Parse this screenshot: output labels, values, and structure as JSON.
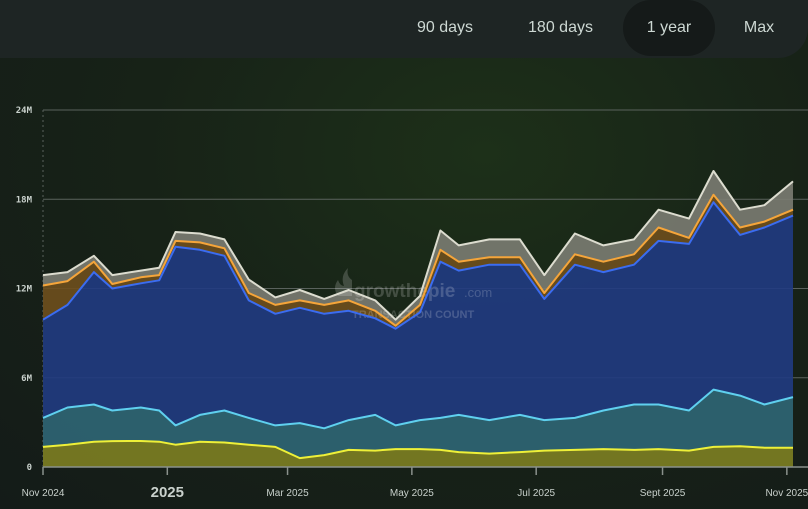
{
  "timeframe_tabs": [
    {
      "label": "90 days"
    },
    {
      "label": "180 days"
    },
    {
      "label": "1 year",
      "active": true
    },
    {
      "label": "Max"
    }
  ],
  "watermark": {
    "brand": "growthepie",
    "domain": ".com",
    "metric": "TRANSACTION COUNT"
  },
  "chart_data": {
    "type": "area",
    "stacked": true,
    "ylim": [
      0,
      24000000
    ],
    "y_ticks": [
      {
        "value": 0,
        "label": "0"
      },
      {
        "value": 6000000,
        "label": "6M"
      },
      {
        "value": 12000000,
        "label": "12M"
      },
      {
        "value": 18000000,
        "label": "18M"
      },
      {
        "value": 24000000,
        "label": "24M"
      }
    ],
    "x_range": [
      "2024-11-01",
      "2025-11-05"
    ],
    "x_ticks": [
      {
        "date": "2024-11-01",
        "label": "Nov 2024"
      },
      {
        "date": "2025-01-01",
        "label": "2025",
        "major": true
      },
      {
        "date": "2025-03-01",
        "label": "Mar 2025"
      },
      {
        "date": "2025-05-01",
        "label": "May 2025"
      },
      {
        "date": "2025-07-01",
        "label": "Jul 2025"
      },
      {
        "date": "2025-09-01",
        "label": "Sept 2025"
      },
      {
        "date": "2025-11-01",
        "label": "Nov 2025"
      }
    ],
    "grid": true,
    "x": [
      "2024-11-01",
      "2024-11-13",
      "2024-11-26",
      "2024-12-05",
      "2024-12-19",
      "2024-12-28",
      "2025-01-05",
      "2025-01-17",
      "2025-01-29",
      "2025-02-10",
      "2025-02-23",
      "2025-03-07",
      "2025-03-19",
      "2025-03-31",
      "2025-04-13",
      "2025-04-23",
      "2025-05-05",
      "2025-05-15",
      "2025-05-24",
      "2025-06-08",
      "2025-06-23",
      "2025-07-05",
      "2025-07-20",
      "2025-08-03",
      "2025-08-18",
      "2025-08-30",
      "2025-09-14",
      "2025-09-26",
      "2025-10-09",
      "2025-10-21",
      "2025-11-04"
    ],
    "series": [
      {
        "color": "#eef038",
        "fill": "#7d7f22",
        "values": [
          1.35,
          1.5,
          1.7,
          1.74,
          1.75,
          1.7,
          1.5,
          1.7,
          1.65,
          1.5,
          1.35,
          0.6,
          0.8,
          1.15,
          1.1,
          1.2,
          1.2,
          1.15,
          1.0,
          0.9,
          1.0,
          1.1,
          1.15,
          1.2,
          1.15,
          1.2,
          1.1,
          1.35,
          1.4,
          1.3,
          1.3
        ]
      },
      {
        "color": "#5fd0ef",
        "fill": "#2f6675",
        "values": [
          1.95,
          2.5,
          2.5,
          2.06,
          2.25,
          2.1,
          1.3,
          1.8,
          2.15,
          1.8,
          1.45,
          2.35,
          1.8,
          2.0,
          2.4,
          1.6,
          1.95,
          2.15,
          2.5,
          2.25,
          2.5,
          2.05,
          2.15,
          2.6,
          3.05,
          3.0,
          2.7,
          3.85,
          3.4,
          2.9,
          3.4
        ]
      },
      {
        "color": "#3b6cf0",
        "fill": "#203b82",
        "values": [
          6.6,
          6.9,
          8.9,
          8.2,
          8.35,
          8.75,
          12.0,
          11.1,
          10.4,
          7.9,
          7.5,
          7.75,
          7.7,
          7.35,
          6.5,
          6.5,
          7.25,
          10.5,
          9.7,
          10.45,
          10.1,
          8.15,
          10.3,
          9.3,
          9.4,
          11.0,
          11.2,
          12.6,
          10.8,
          11.9,
          12.2
        ]
      },
      {
        "color": "#f5a53a",
        "fill": "#6e4f1d",
        "values": [
          2.3,
          1.6,
          0.7,
          0.3,
          0.4,
          0.35,
          0.4,
          0.5,
          0.5,
          0.5,
          0.6,
          0.5,
          0.6,
          0.7,
          0.5,
          0.2,
          0.5,
          0.8,
          0.6,
          0.5,
          0.5,
          0.4,
          0.7,
          0.7,
          0.7,
          0.9,
          0.4,
          0.5,
          0.5,
          0.4,
          0.4
        ]
      },
      {
        "color": "#dcdccf",
        "fill": "#7b7c72",
        "values": [
          0.7,
          0.6,
          0.4,
          0.6,
          0.45,
          0.5,
          0.6,
          0.6,
          0.6,
          0.9,
          0.5,
          0.7,
          0.4,
          0.7,
          0.7,
          0.4,
          0.6,
          1.3,
          1.1,
          1.2,
          1.2,
          1.2,
          1.4,
          1.1,
          1.0,
          1.2,
          1.3,
          1.6,
          1.2,
          1.1,
          1.9
        ]
      }
    ],
    "value_unit": "millions"
  }
}
